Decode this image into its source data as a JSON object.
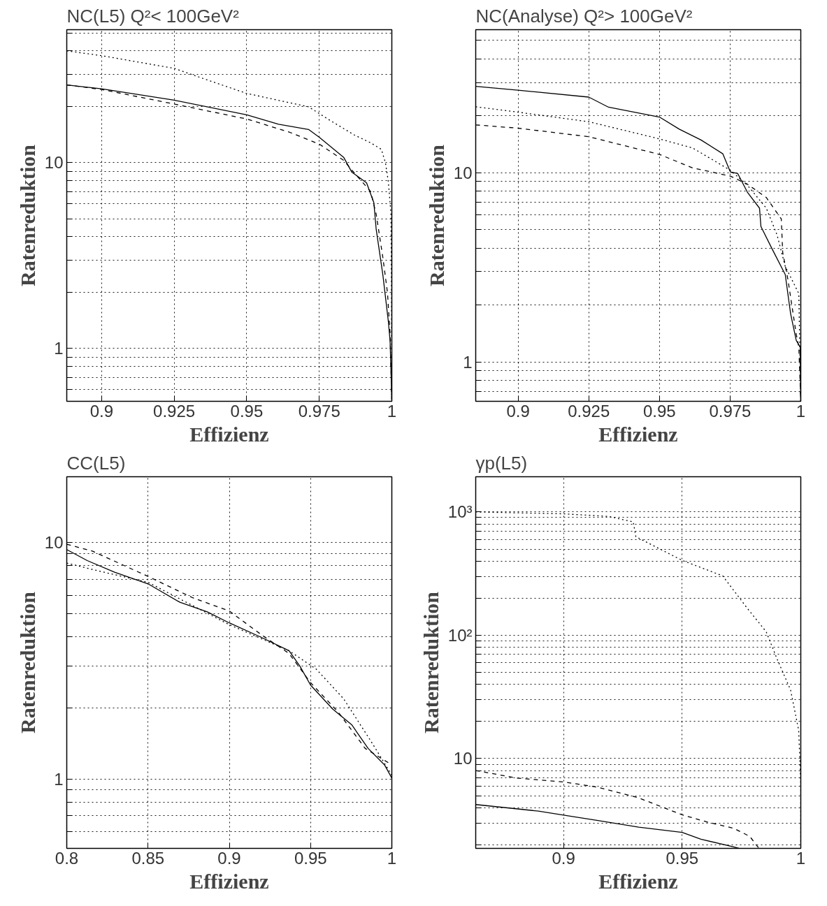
{
  "chart_data": [
    {
      "type": "line",
      "title": "NC(L5) Q²< 100GeV²",
      "xlabel": "Effizienz",
      "ylabel": "Ratenreduktion",
      "log": "y",
      "grid": true,
      "xlim": [
        0.888,
        1.0
      ],
      "ylim": [
        0.52,
        52
      ],
      "xticks": [
        0.9,
        0.925,
        0.95,
        0.975,
        1
      ],
      "yticks": [
        {
          "value": 0.6,
          "label": null
        },
        {
          "value": 0.7,
          "label": null
        },
        {
          "value": 0.8,
          "label": null
        },
        {
          "value": 0.9,
          "label": null
        },
        1,
        {
          "value": 2,
          "label": null
        },
        {
          "value": 3,
          "label": null
        },
        {
          "value": 4,
          "label": null
        },
        {
          "value": 5,
          "label": null
        },
        {
          "value": 6,
          "label": null
        },
        {
          "value": 7,
          "label": null
        },
        {
          "value": 8,
          "label": null
        },
        {
          "value": 9,
          "label": null
        },
        10,
        {
          "value": 20,
          "label": null
        },
        {
          "value": 30,
          "label": null
        },
        {
          "value": 40,
          "label": null
        },
        {
          "value": 50,
          "label": null
        }
      ],
      "series": [
        {
          "color": "#000000",
          "line_style": "solid",
          "x": [
            0.888,
            0.9,
            0.925,
            0.95,
            0.961,
            0.9713,
            0.975,
            0.9834,
            0.9862,
            0.9913,
            0.9938,
            0.9946,
            0.9969,
            0.9988,
            0.9994,
            1.0
          ],
          "values": [
            26.2,
            25.0,
            21.7,
            18.1,
            16.1,
            15.1,
            13.7,
            10.7,
            8.9,
            7.8,
            6.1,
            4.4,
            2.5,
            1.4,
            1.1,
            0.53
          ]
        },
        {
          "color": "#000000",
          "line_style": "dashed",
          "x": [
            0.888,
            0.9,
            0.925,
            0.95,
            0.9647,
            0.975,
            0.9834,
            0.9871,
            0.9927,
            0.9946,
            0.9969,
            0.9985,
            0.9994,
            1.0
          ],
          "values": [
            26.2,
            24.8,
            20.7,
            17.2,
            14.6,
            12.6,
            10.3,
            8.8,
            7.0,
            5.3,
            3.1,
            2.0,
            1.2,
            0.53
          ]
        },
        {
          "color": "#000000",
          "line_style": "dotted",
          "x": [
            0.888,
            0.9,
            0.925,
            0.9367,
            0.95,
            0.9713,
            0.9787,
            0.9871,
            0.9927,
            0.9964,
            0.9978,
            0.9988,
            0.9997,
            0.9999,
            1.0
          ],
          "values": [
            40.0,
            37.7,
            32.2,
            27.8,
            23.6,
            20.0,
            16.9,
            14.1,
            12.8,
            11.8,
            10.0,
            7.9,
            5.3,
            2.0,
            0.53
          ]
        }
      ]
    },
    {
      "type": "line",
      "title": "NC(Analyse) Q²> 100GeV²",
      "xlabel": "Effizienz",
      "ylabel": "Ratenreduktion",
      "log": "y",
      "grid": true,
      "xlim": [
        0.885,
        1.0
      ],
      "ylim": [
        0.62,
        57
      ],
      "xticks": [
        0.9,
        0.925,
        0.95,
        0.975,
        1
      ],
      "yticks": [
        {
          "value": 0.7,
          "label": null
        },
        {
          "value": 0.8,
          "label": null
        },
        {
          "value": 0.9,
          "label": null
        },
        1,
        {
          "value": 2,
          "label": null
        },
        {
          "value": 3,
          "label": null
        },
        {
          "value": 4,
          "label": null
        },
        {
          "value": 5,
          "label": null
        },
        {
          "value": 6,
          "label": null
        },
        {
          "value": 7,
          "label": null
        },
        {
          "value": 8,
          "label": null
        },
        {
          "value": 9,
          "label": null
        },
        10,
        {
          "value": 20,
          "label": null
        },
        {
          "value": 30,
          "label": null
        },
        {
          "value": 40,
          "label": null
        },
        {
          "value": 50,
          "label": null
        }
      ],
      "series": [
        {
          "color": "#000000",
          "line_style": "solid",
          "x": [
            0.885,
            0.9,
            0.925,
            0.932,
            0.95,
            0.957,
            0.9647,
            0.9724,
            0.9751,
            0.9777,
            0.9811,
            0.9854,
            0.9859,
            0.9897,
            0.9945,
            0.9964,
            0.9984,
            0.9998,
            1.0
          ],
          "values": [
            28.6,
            27.3,
            25.1,
            22.2,
            19.7,
            17.0,
            14.9,
            12.6,
            10.1,
            9.9,
            7.9,
            6.5,
            5.2,
            4.0,
            2.9,
            1.8,
            1.3,
            1.2,
            0.62
          ]
        },
        {
          "color": "#000000",
          "line_style": "dashed",
          "x": [
            0.885,
            0.9,
            0.925,
            0.95,
            0.9618,
            0.9751,
            0.9811,
            0.9878,
            0.9931,
            0.9936,
            0.9955,
            0.9984,
            0.9993,
            1.0
          ],
          "values": [
            17.9,
            17.2,
            15.5,
            12.5,
            10.6,
            9.6,
            8.7,
            7.4,
            5.7,
            3.8,
            2.7,
            1.4,
            1.2,
            0.62
          ]
        },
        {
          "color": "#000000",
          "line_style": "dotted",
          "x": [
            0.885,
            0.9,
            0.925,
            0.95,
            0.9618,
            0.9751,
            0.9811,
            0.9878,
            0.9916,
            0.9945,
            0.9993,
            1.0
          ],
          "values": [
            22.3,
            20.9,
            18.6,
            15.1,
            13.5,
            10.3,
            8.6,
            6.5,
            4.7,
            3.2,
            2.3,
            0.62
          ]
        }
      ]
    },
    {
      "type": "line",
      "title": "CC(L5)",
      "xlabel": "Effizienz",
      "ylabel": "Ratenreduktion",
      "log": "y",
      "grid": true,
      "xlim": [
        0.8,
        1.0
      ],
      "ylim": [
        0.51,
        19
      ],
      "xticks": [
        0.8,
        0.85,
        0.9,
        0.95,
        1
      ],
      "yticks": [
        {
          "value": 0.6,
          "label": null
        },
        {
          "value": 0.7,
          "label": null
        },
        {
          "value": 0.8,
          "label": null
        },
        {
          "value": 0.9,
          "label": null
        },
        1,
        {
          "value": 2,
          "label": null
        },
        {
          "value": 3,
          "label": null
        },
        {
          "value": 4,
          "label": null
        },
        {
          "value": 5,
          "label": null
        },
        {
          "value": 6,
          "label": null
        },
        {
          "value": 7,
          "label": null
        },
        {
          "value": 8,
          "label": null
        },
        {
          "value": 9,
          "label": null
        },
        10
      ],
      "series": [
        {
          "color": "#000000",
          "line_style": "solid",
          "x": [
            0.8,
            0.8126,
            0.8294,
            0.85,
            0.8696,
            0.8864,
            0.9,
            0.92,
            0.9368,
            0.9435,
            0.95,
            0.9636,
            0.9753,
            0.9854,
            0.9955,
            1.0
          ],
          "values": [
            9.35,
            8.4,
            7.5,
            6.7,
            5.6,
            5.1,
            4.58,
            3.97,
            3.49,
            3.0,
            2.5,
            1.98,
            1.7,
            1.35,
            1.15,
            1.01
          ]
        },
        {
          "color": "#000000",
          "line_style": "dashed",
          "x": [
            0.8,
            0.816,
            0.85,
            0.8775,
            0.9,
            0.92,
            0.9368,
            0.95,
            0.9668,
            0.9836,
            1.0
          ],
          "values": [
            9.85,
            9.2,
            7.2,
            5.85,
            5.14,
            4.07,
            3.4,
            2.56,
            1.93,
            1.35,
            1.15
          ]
        },
        {
          "color": "#000000",
          "line_style": "dotted",
          "x": [
            0.8,
            0.8193,
            0.85,
            0.9,
            0.9368,
            0.9535,
            0.9703,
            0.9871,
            1.0
          ],
          "values": [
            8.2,
            7.6,
            6.8,
            4.5,
            3.49,
            2.92,
            2.19,
            1.45,
            1.04
          ]
        }
      ]
    },
    {
      "type": "line",
      "title": "γp(L5)",
      "xlabel": "Effizienz",
      "ylabel": "Ratenreduktion",
      "log": "y",
      "grid": true,
      "xlim": [
        0.863,
        1.0
      ],
      "ylim": [
        1.87,
        1930
      ],
      "xticks": [
        0.9,
        0.95,
        1
      ],
      "yticks": [
        {
          "value": 2,
          "label": null
        },
        {
          "value": 3,
          "label": null
        },
        {
          "value": 4,
          "label": null
        },
        {
          "value": 5,
          "label": null
        },
        {
          "value": 6,
          "label": null
        },
        {
          "value": 7,
          "label": null
        },
        {
          "value": 8,
          "label": null
        },
        {
          "value": 9,
          "label": null
        },
        10,
        {
          "value": 20,
          "label": null
        },
        {
          "value": 30,
          "label": null
        },
        {
          "value": 40,
          "label": null
        },
        {
          "value": 50,
          "label": null
        },
        {
          "value": 60,
          "label": null
        },
        {
          "value": 70,
          "label": null
        },
        {
          "value": 80,
          "label": null
        },
        {
          "value": 90,
          "label": null
        },
        {
          "value": 100,
          "label": "10²"
        },
        {
          "value": 200,
          "label": null
        },
        {
          "value": 300,
          "label": null
        },
        {
          "value": 400,
          "label": null
        },
        {
          "value": 500,
          "label": null
        },
        {
          "value": 600,
          "label": null
        },
        {
          "value": 700,
          "label": null
        },
        {
          "value": 800,
          "label": null
        },
        {
          "value": 900,
          "label": null
        },
        {
          "value": 1000,
          "label": "10³"
        }
      ],
      "series": [
        {
          "color": "#000000",
          "line_style": "solid",
          "x": [
            0.863,
            0.8894,
            0.9,
            0.9145,
            0.9317,
            0.95,
            0.9579,
            0.9717,
            0.9739
          ],
          "values": [
            4.24,
            3.75,
            3.48,
            3.15,
            2.78,
            2.52,
            2.22,
            1.92,
            1.87
          ]
        },
        {
          "color": "#000000",
          "line_style": "dashed",
          "x": [
            0.863,
            0.8802,
            0.9,
            0.9145,
            0.9317,
            0.95,
            0.9602,
            0.9717,
            0.9785,
            0.9819,
            0.9831
          ],
          "values": [
            8.0,
            6.96,
            6.47,
            5.86,
            4.8,
            3.5,
            3.07,
            2.72,
            2.34,
            1.92,
            1.87
          ]
        },
        {
          "color": "#000000",
          "line_style": "dotted",
          "x": [
            0.863,
            0.9,
            0.9191,
            0.9294,
            0.9305,
            0.95,
            0.9671,
            0.9774,
            0.9854,
            0.9899,
            0.9957,
            0.9991,
            1.0,
            1.0
          ],
          "values": [
            1000,
            966,
            920,
            830,
            630,
            405,
            303,
            166,
            107,
            65,
            36,
            17,
            6.3,
            1.87
          ]
        }
      ]
    }
  ]
}
